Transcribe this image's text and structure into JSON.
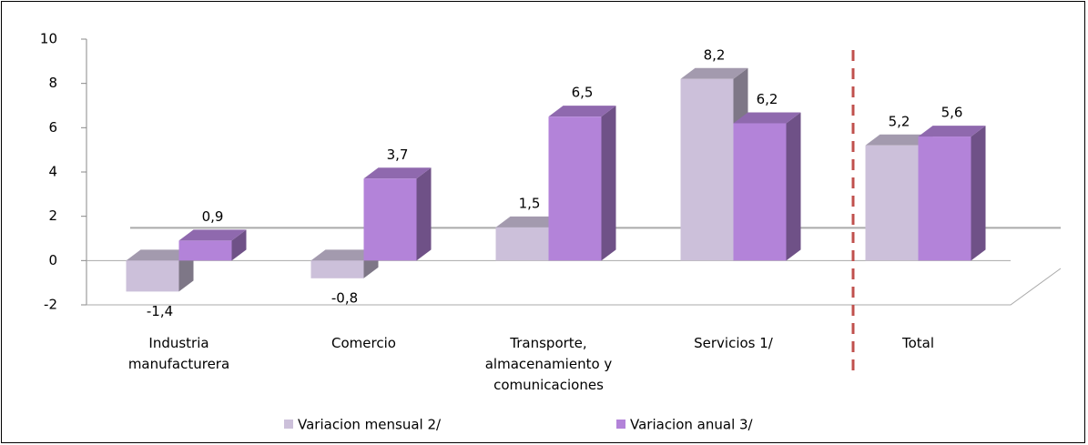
{
  "chart_data": {
    "type": "bar3d",
    "categories": [
      "Industria manufacturera",
      "Comercio",
      "Transporte, almacenamiento y comunicaciones",
      "Servicios 1/",
      "Total"
    ],
    "series": [
      {
        "name": "Variacion mensual 2/",
        "color": "#ccc0da",
        "values": [
          -1.4,
          -0.8,
          1.5,
          8.2,
          5.2
        ],
        "value_labels": [
          "-1,4",
          "-0,8",
          "1,5",
          "8,2",
          "5,2"
        ]
      },
      {
        "name": "Variacion anual 3/",
        "color": "#b383d9",
        "values": [
          0.9,
          3.7,
          6.5,
          6.2,
          5.6
        ],
        "value_labels": [
          "0,9",
          "3,7",
          "6,5",
          "6,2",
          "5,6"
        ]
      }
    ],
    "ylim": [
      -2,
      10
    ],
    "yticks": [
      -2,
      0,
      2,
      4,
      6,
      8,
      10
    ],
    "legend": "bottom"
  }
}
